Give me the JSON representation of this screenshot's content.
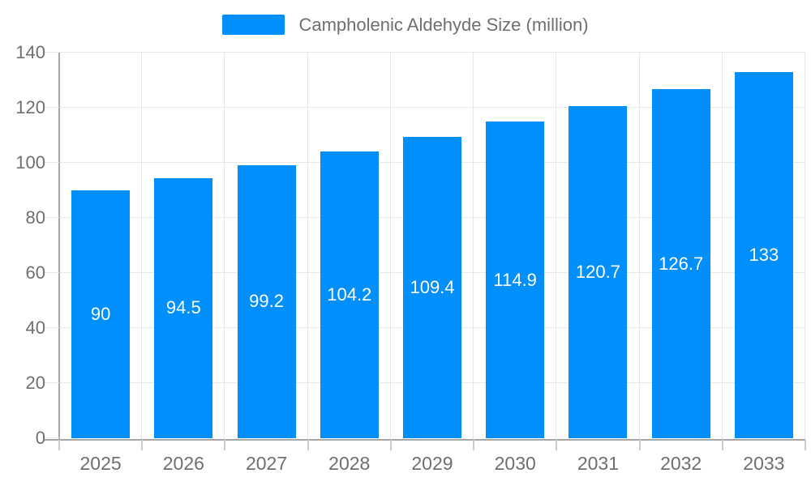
{
  "chart_data": {
    "type": "bar",
    "title": "Campholenic Aldehyde Size (million)",
    "categories": [
      "2025",
      "2026",
      "2027",
      "2028",
      "2029",
      "2030",
      "2031",
      "2032",
      "2033"
    ],
    "values": [
      90,
      94.5,
      99.2,
      104.2,
      109.4,
      114.9,
      120.7,
      126.7,
      133
    ],
    "value_labels": [
      "90",
      "94.5",
      "99.2",
      "104.2",
      "109.4",
      "114.9",
      "120.7",
      "126.7",
      "133"
    ],
    "series_name": "Campholenic Aldehyde Size (million)",
    "xlabel": "",
    "ylabel": "",
    "ylim": [
      0,
      140
    ],
    "ytick_step": 20,
    "ytick_labels": [
      "0",
      "20",
      "40",
      "60",
      "80",
      "100",
      "120",
      "140"
    ],
    "grid": "horizontal and vertical category boundaries",
    "legend_position": "top-center",
    "colors": {
      "bar": "#008FFB",
      "bar_label": "#ffffff",
      "axis_label": "#6f6f6f",
      "legend_text": "#6f6f6f",
      "grid_line": "#e7e7e7",
      "axis_line": "#a6a6a6",
      "tick": "#cccccc"
    }
  }
}
